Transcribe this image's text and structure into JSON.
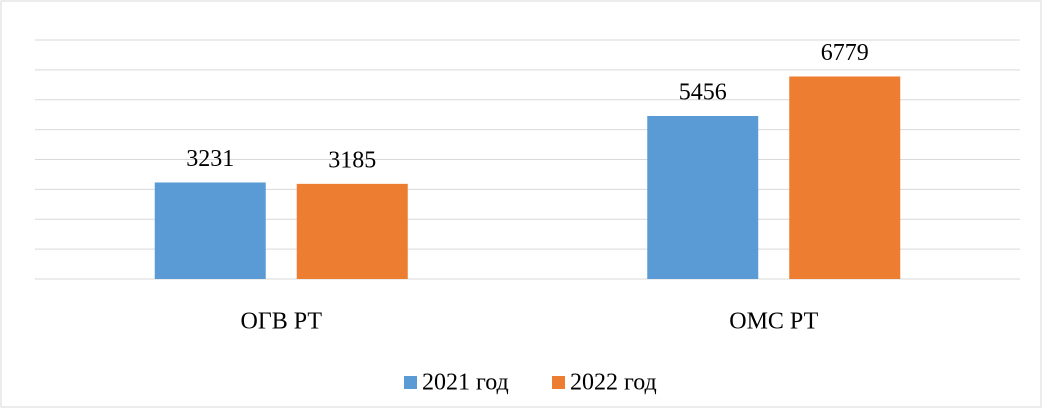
{
  "chart_data": {
    "type": "bar",
    "categories": [
      "ОГВ РТ",
      "ОМС РТ"
    ],
    "series": [
      {
        "name": "2021 год",
        "color": "#5b9bd5",
        "values": [
          3231,
          5456
        ]
      },
      {
        "name": "2022 год",
        "color": "#ed7d31",
        "values": [
          3185,
          6779
        ]
      }
    ],
    "ylim": [
      0,
      8000
    ],
    "yticks": [
      0,
      1000,
      2000,
      3000,
      4000,
      5000,
      6000,
      7000,
      8000
    ],
    "grid": true,
    "legend": "bottom"
  }
}
